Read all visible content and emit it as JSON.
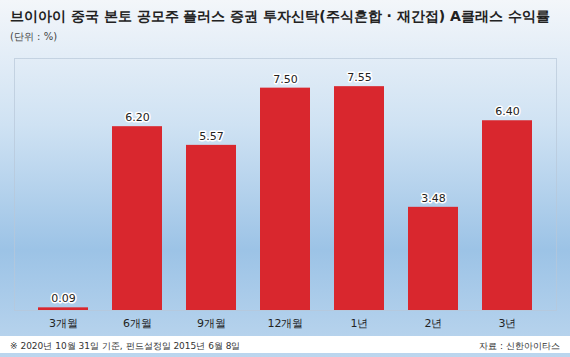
{
  "chart_data": {
    "type": "bar",
    "title": "브이아이 중국 본토 공모주 플러스 증권 투자신탁(주식혼합 · 재간접) A클래스 수익률",
    "subtitle": "(단위 : %)",
    "categories": [
      "3개월",
      "6개월",
      "9개월",
      "12개월",
      "1년",
      "2년",
      "3년"
    ],
    "values": [
      0.09,
      6.2,
      5.57,
      7.5,
      7.55,
      3.48,
      6.4
    ],
    "value_labels": [
      "0.09",
      "6.20",
      "5.57",
      "7.50",
      "7.55",
      "3.48",
      "6.40"
    ],
    "color": "#d9272e",
    "ylim": [
      0,
      8.5
    ],
    "data_labels": true,
    "tick_labels": "x",
    "footnote": "※ 2020년 10월 31일 기준, 펀드설정일 2015년 6월 8일",
    "source": "자료 : 신한아이타스"
  }
}
